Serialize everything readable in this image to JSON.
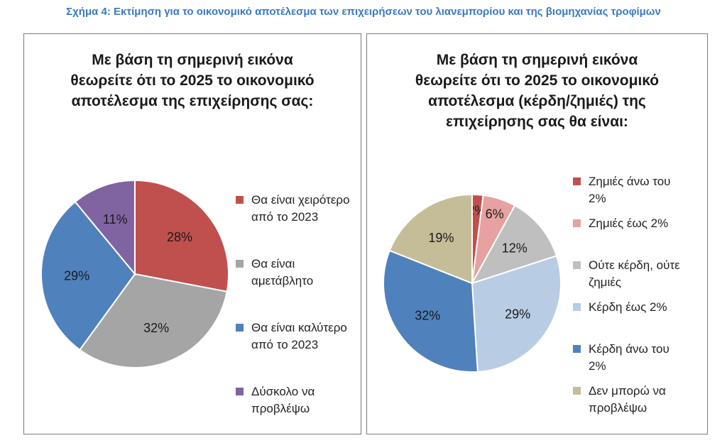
{
  "figure_title": "Σχήμα 4: Εκτίμηση για το οικονομικό αποτέλεσμα των επιχειρήσεων του λιανεμπορίου και της βιομηχανίας τροφίμων",
  "chart_data": [
    {
      "type": "pie",
      "title_lines": [
        "Με βάση τη σημερινή εικόνα",
        "θεωρείτε ότι το 2025 το οικονομικό",
        "αποτέλεσμα της επιχείρησης σας:"
      ],
      "slices": [
        {
          "label_lines": [
            "Θα είναι χειρότερο",
            "από το 2023"
          ],
          "value": 28,
          "display": "28%",
          "color": "#c0504d"
        },
        {
          "label_lines": [
            "Θα είναι",
            "αμετάβλητο"
          ],
          "value": 32,
          "display": "32%",
          "color": "#a5a5a5"
        },
        {
          "label_lines": [
            "Θα είναι καλύτερο",
            "από το 2023"
          ],
          "value": 29,
          "display": "29%",
          "color": "#4f81bd"
        },
        {
          "label_lines": [
            "Δύσκολο να",
            "προβλέψω"
          ],
          "value": 11,
          "display": "11%",
          "color": "#8064a2"
        }
      ]
    },
    {
      "type": "pie",
      "title_lines": [
        "Με βάση τη σημερινή εικόνα",
        "θεωρείτε ότι το 2025 το οικονομικό",
        "αποτέλεσμα (κέρδη/ζημιές) της",
        "επιχείρησης σας θα είναι:"
      ],
      "slices": [
        {
          "label_lines": [
            "Ζημιές άνω του",
            "2%"
          ],
          "value": 2,
          "display": "2%",
          "color": "#c0504d"
        },
        {
          "label_lines": [
            "Ζημιές έως 2%"
          ],
          "value": 6,
          "display": "6%",
          "color": "#e6a1a0"
        },
        {
          "label_lines": [
            "Ούτε κέρδη, ούτε",
            "ζημιές"
          ],
          "value": 12,
          "display": "12%",
          "color": "#bfbfbf"
        },
        {
          "label_lines": [
            "Κέρδη έως 2%"
          ],
          "value": 29,
          "display": "29%",
          "color": "#b8cce4"
        },
        {
          "label_lines": [
            "Κέρδη άνω του",
            "2%"
          ],
          "value": 32,
          "display": "32%",
          "color": "#4f81bd"
        },
        {
          "label_lines": [
            "Δεν μπορώ να",
            "προβλέψω"
          ],
          "value": 19,
          "display": "19%",
          "color": "#c4bd97"
        }
      ]
    }
  ]
}
